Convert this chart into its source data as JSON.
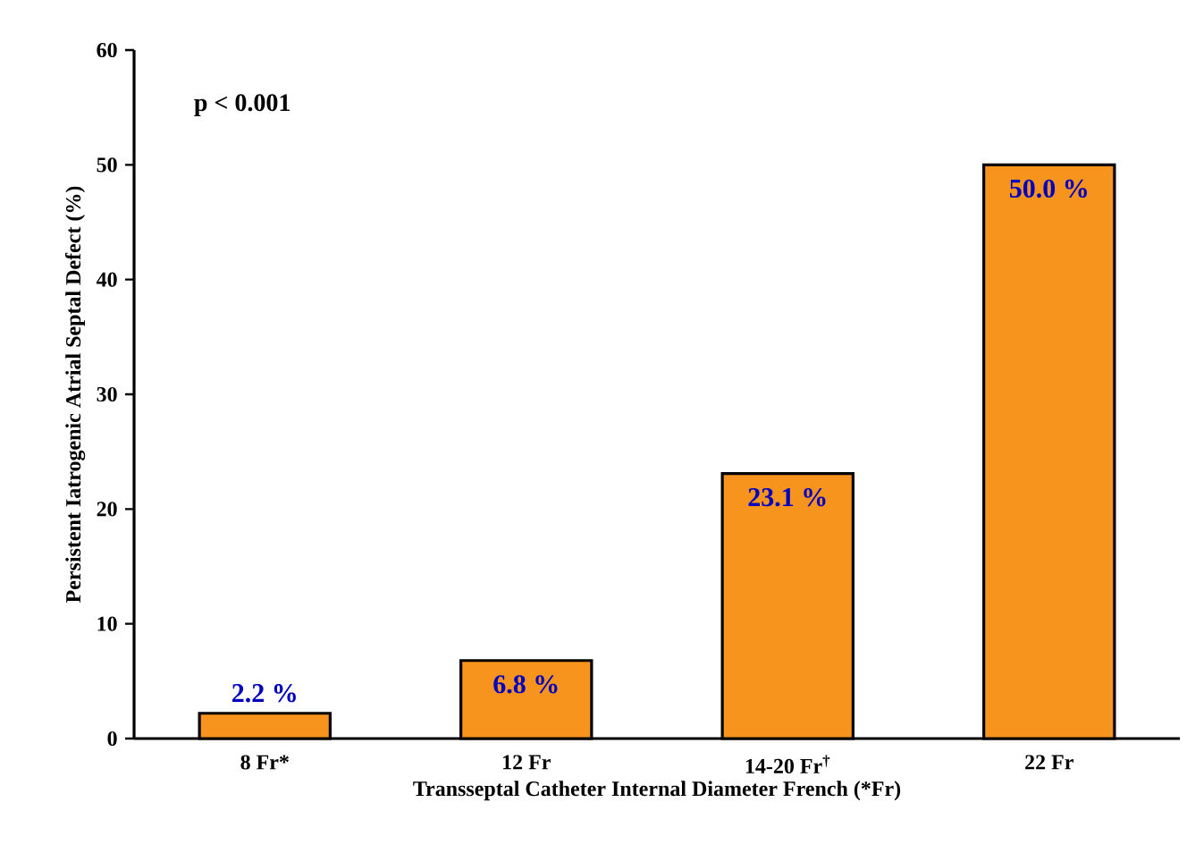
{
  "chart_data": {
    "type": "bar",
    "xlabel": "Transseptal Catheter Internal Diameter French (*Fr)",
    "ylabel": "Persistent Iatrogenic Atrial Septal Defect (%)",
    "categories": [
      "8 Fr*",
      "12 Fr",
      "14-20 Fr$^{†}$",
      "22 Fr"
    ],
    "values": [
      2.2,
      6.8,
      23.1,
      50.0
    ],
    "value_labels": [
      "2.2 %",
      "6.8 %",
      "23.1 %",
      "50.0 %"
    ],
    "color": "#f7941d",
    "ylim": [
      0,
      60
    ],
    "yticks": [
      0,
      10,
      20,
      30,
      40,
      50,
      60
    ],
    "annotations": [
      "p < 0.001"
    ]
  }
}
